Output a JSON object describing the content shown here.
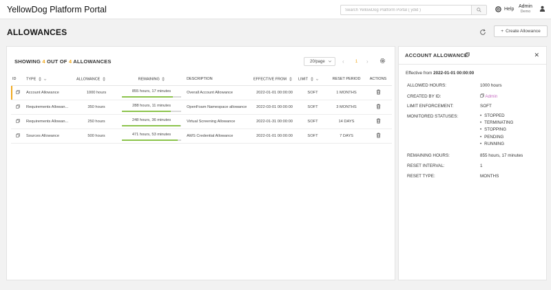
{
  "header": {
    "brand": "YellowDog Platform Portal",
    "search_placeholder": "Search YellowDog Platform Portal ( ydid )",
    "help_label": "Help",
    "user_name": "Admin",
    "user_role": "Demo"
  },
  "page": {
    "title": "ALLOWANCES",
    "create_label": "Create Allowance"
  },
  "list": {
    "showing_prefix": "SHOWING ",
    "showing_count": "4",
    "showing_mid": " OUT OF ",
    "showing_total": "4",
    "showing_suffix": " ALLOWANCES",
    "page_size": "20/page",
    "current_page": "1",
    "columns": [
      "ID",
      "TYPE",
      "ALLOWANCE",
      "REMAINING",
      "DESCRIPTION",
      "EFFECTIVE FROM",
      "LIMIT",
      "RESET PERIOD",
      "ACTIONS"
    ],
    "rows": [
      {
        "type": "Account Allowance",
        "allowance": "1000 hours",
        "remaining": "855 hours, 17 minutes",
        "remaining_fraction": 0.855,
        "description": "Overall Account Allowance",
        "effective_from": "2022-01-01 00:00:00",
        "limit": "SOFT",
        "reset_period": "1 MONTHS"
      },
      {
        "type": "Requirements Allowan...",
        "allowance": "350 hours",
        "remaining": "288 hours, 11 minutes",
        "remaining_fraction": 0.823,
        "description": "OpenFoam Namespace allowance",
        "effective_from": "2022-03-01 00:00:00",
        "limit": "SOFT",
        "reset_period": "3 MONTHS"
      },
      {
        "type": "Requirements Allowan...",
        "allowance": "250 hours",
        "remaining": "248 hours, 36 minutes",
        "remaining_fraction": 0.994,
        "description": "Virtual Screening Allowance",
        "effective_from": "2022-01-31 00:00:00",
        "limit": "SOFT",
        "reset_period": "14 DAYS"
      },
      {
        "type": "Sources Allowance",
        "allowance": "500 hours",
        "remaining": "471 hours, 53 minutes",
        "remaining_fraction": 0.944,
        "description": "AWS Credential Allowance",
        "effective_from": "2022-01-01 00:00:00",
        "limit": "SOFT",
        "reset_period": "7 DAYS"
      }
    ]
  },
  "detail": {
    "title": "ACCOUNT ALLOWANCE",
    "effective_label": "Effective from ",
    "effective_value": "2022-01-01 00:00:00",
    "allowed_hours_label": "ALLOWED HOURS:",
    "allowed_hours": "1000 hours",
    "created_by_label": "CREATED BY ID:",
    "created_by": "Admin",
    "limit_label": "LIMIT ENFORCEMENT:",
    "limit": "SOFT",
    "statuses_label": "MONITORED STATUSES:",
    "statuses": [
      "STOPPED",
      "TERMINATING",
      "STOPPING",
      "PENDING",
      "RUNNING"
    ],
    "remaining_label": "REMAINING HOURS:",
    "remaining": "855 hours, 17 minutes",
    "reset_interval_label": "RESET INTERVAL:",
    "reset_interval": "1",
    "reset_type_label": "RESET TYPE:",
    "reset_type": "MONTHS"
  },
  "colors": {
    "accent": "#f0a81c",
    "progress": "#8bc34a",
    "link": "#c56ac0"
  },
  "icons": [
    "search-icon",
    "help-icon",
    "user-icon",
    "refresh-icon",
    "plus-icon",
    "caret-down-icon",
    "chevron-left-icon",
    "chevron-right-icon",
    "settings-icon",
    "copy-icon",
    "trash-icon",
    "close-icon"
  ]
}
